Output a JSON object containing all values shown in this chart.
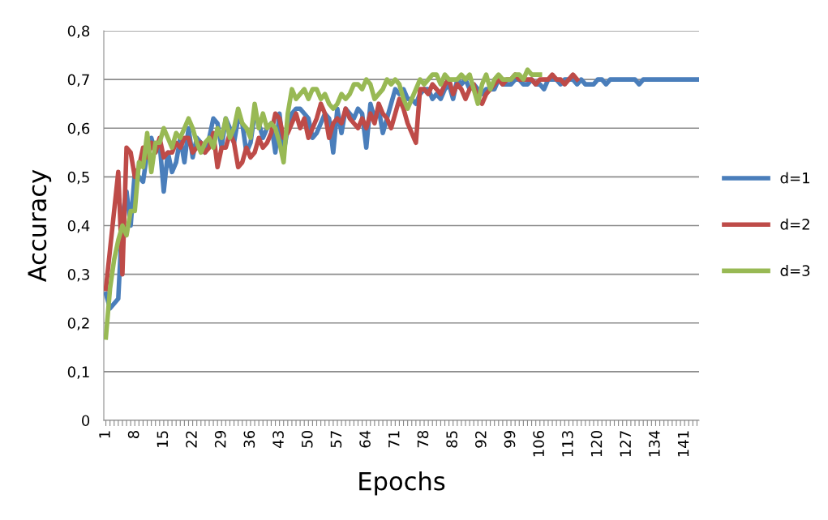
{
  "chart_data": {
    "type": "line",
    "xlabel": "Epochs",
    "ylabel": "Accuracy",
    "categories": [
      "1",
      null,
      null,
      null,
      null,
      null,
      null,
      "8",
      null,
      null,
      null,
      null,
      null,
      null,
      "15",
      null,
      null,
      null,
      null,
      null,
      null,
      "22",
      null,
      null,
      null,
      null,
      null,
      null,
      "29",
      null,
      null,
      null,
      null,
      null,
      null,
      "36",
      null,
      null,
      null,
      null,
      null,
      null,
      "43",
      null,
      null,
      null,
      null,
      null,
      null,
      "50",
      null,
      null,
      null,
      null,
      null,
      null,
      "57",
      null,
      null,
      null,
      null,
      null,
      null,
      "64",
      null,
      null,
      null,
      null,
      null,
      null,
      "71",
      null,
      null,
      null,
      null,
      null,
      null,
      "78",
      null,
      null,
      null,
      null,
      null,
      null,
      "85",
      null,
      null,
      null,
      null,
      null,
      null,
      "92",
      null,
      null,
      null,
      null,
      null,
      null,
      "99",
      null,
      null,
      null,
      null,
      null,
      null,
      "106",
      null,
      null,
      null,
      null,
      null,
      null,
      "113",
      null,
      null,
      null,
      null,
      null,
      null,
      "120",
      null,
      null,
      null,
      null,
      null,
      null,
      "127",
      null,
      null,
      null,
      null,
      null,
      null,
      "134",
      null,
      null,
      null,
      null,
      null,
      null,
      "141",
      null,
      null,
      null
    ],
    "series": [
      {
        "name": "d=1",
        "color": "#4a7ebb",
        "values": [
          0.26,
          0.23,
          0.24,
          0.25,
          0.42,
          0.47,
          0.4,
          0.51,
          0.5,
          0.49,
          0.55,
          0.58,
          0.55,
          0.57,
          0.47,
          0.55,
          0.51,
          0.53,
          0.58,
          0.53,
          0.6,
          0.54,
          0.58,
          0.57,
          0.55,
          0.58,
          0.62,
          0.61,
          0.56,
          0.62,
          0.6,
          0.57,
          0.62,
          0.61,
          0.55,
          0.57,
          0.63,
          0.61,
          0.58,
          0.6,
          0.61,
          0.55,
          0.63,
          0.55,
          0.6,
          0.63,
          0.64,
          0.64,
          0.63,
          0.62,
          0.58,
          0.59,
          0.61,
          0.63,
          0.62,
          0.55,
          0.64,
          0.59,
          0.64,
          0.63,
          0.62,
          0.64,
          0.63,
          0.56,
          0.65,
          0.62,
          0.64,
          0.59,
          0.62,
          0.65,
          0.68,
          0.67,
          0.68,
          0.66,
          0.66,
          0.65,
          0.67,
          0.68,
          0.68,
          0.66,
          0.67,
          0.66,
          0.68,
          0.69,
          0.66,
          0.7,
          0.69,
          0.7,
          0.68,
          0.69,
          0.68,
          0.67,
          0.68,
          0.68,
          0.68,
          0.7,
          0.69,
          0.69,
          0.69,
          0.7,
          0.7,
          0.69,
          0.69,
          0.7,
          0.69,
          0.69,
          0.68,
          0.7,
          0.7,
          0.7,
          0.69,
          0.7,
          0.7,
          0.7,
          0.69,
          0.7,
          0.69,
          0.69,
          0.69,
          0.7,
          0.7,
          0.69,
          0.7,
          0.7,
          0.7,
          0.7,
          0.7,
          0.7,
          0.7,
          0.69,
          0.7,
          0.7,
          0.7,
          0.7,
          0.7,
          0.7,
          0.7,
          0.7,
          0.7,
          0.7,
          0.7,
          0.7,
          0.7,
          0.7
        ]
      },
      {
        "name": "d=2",
        "color": "#be4b48",
        "values": [
          0.27,
          0.35,
          0.43,
          0.51,
          0.3,
          0.56,
          0.55,
          0.5,
          0.52,
          0.56,
          0.54,
          0.57,
          0.55,
          0.58,
          0.54,
          0.55,
          0.55,
          0.57,
          0.56,
          0.58,
          0.58,
          0.55,
          0.56,
          0.57,
          0.55,
          0.56,
          0.59,
          0.52,
          0.56,
          0.56,
          0.59,
          0.57,
          0.52,
          0.53,
          0.56,
          0.54,
          0.55,
          0.58,
          0.56,
          0.57,
          0.59,
          0.63,
          0.62,
          0.58,
          0.59,
          0.61,
          0.63,
          0.6,
          0.62,
          0.58,
          0.6,
          0.62,
          0.65,
          0.63,
          0.58,
          0.61,
          0.62,
          0.61,
          0.64,
          0.62,
          0.61,
          0.6,
          0.62,
          0.6,
          0.63,
          0.61,
          0.65,
          0.63,
          0.62,
          0.6,
          0.63,
          0.66,
          0.64,
          0.61,
          0.59,
          0.57,
          0.68,
          0.68,
          0.67,
          0.69,
          0.68,
          0.67,
          0.69,
          0.7,
          0.67,
          0.69,
          0.68,
          0.66,
          0.68,
          0.69,
          0.66,
          0.65,
          0.67,
          0.68,
          0.69,
          0.7,
          0.69,
          0.7,
          0.7,
          0.71,
          0.7,
          0.7,
          0.7,
          0.7,
          0.69,
          0.7,
          0.7,
          0.7,
          0.71,
          0.7,
          0.7,
          0.69,
          0.7,
          0.71,
          0.7,
          null,
          null,
          null,
          null,
          null,
          null,
          null,
          null,
          null,
          null,
          null,
          null,
          null,
          null,
          null,
          null,
          null,
          null,
          null,
          null,
          null,
          null,
          null,
          null,
          null,
          null,
          null,
          null,
          null
        ]
      },
      {
        "name": "d=3",
        "color": "#98b954",
        "values": [
          0.17,
          0.27,
          0.33,
          0.37,
          0.4,
          0.38,
          0.43,
          0.43,
          0.53,
          0.52,
          0.59,
          0.51,
          0.57,
          0.57,
          0.6,
          0.58,
          0.56,
          0.59,
          0.58,
          0.6,
          0.62,
          0.6,
          0.57,
          0.55,
          0.57,
          0.58,
          0.56,
          0.6,
          0.58,
          0.62,
          0.58,
          0.6,
          0.64,
          0.61,
          0.6,
          0.58,
          0.65,
          0.6,
          0.63,
          0.6,
          0.61,
          0.6,
          0.57,
          0.53,
          0.63,
          0.68,
          0.66,
          0.67,
          0.68,
          0.66,
          0.68,
          0.68,
          0.66,
          0.67,
          0.65,
          0.64,
          0.65,
          0.67,
          0.66,
          0.67,
          0.69,
          0.69,
          0.68,
          0.7,
          0.69,
          0.66,
          0.67,
          0.68,
          0.7,
          0.69,
          0.7,
          0.69,
          0.66,
          0.64,
          0.66,
          0.68,
          0.7,
          0.69,
          0.7,
          0.71,
          0.71,
          0.69,
          0.71,
          0.7,
          0.7,
          0.7,
          0.71,
          0.7,
          0.71,
          0.68,
          0.65,
          0.69,
          0.71,
          0.68,
          0.7,
          0.71,
          0.7,
          0.7,
          0.7,
          0.71,
          0.71,
          0.7,
          0.72,
          0.71,
          0.71,
          0.71,
          null,
          null,
          null,
          null,
          null,
          null,
          null,
          null,
          null,
          null,
          null,
          null,
          null,
          null,
          null,
          null,
          null,
          null,
          null,
          null,
          null,
          null,
          null,
          null,
          null,
          null,
          null,
          null,
          null,
          null,
          null,
          null,
          null,
          null,
          null,
          null,
          null,
          null
        ]
      }
    ],
    "ylim": [
      0,
      0.8
    ],
    "yticks": [
      0,
      {
        "value": 0.1,
        "label": "0,1"
      },
      {
        "value": 0.2,
        "label": "0,2"
      },
      {
        "value": 0.3,
        "label": "0,3"
      },
      {
        "value": 0.4,
        "label": "0,4"
      },
      {
        "value": 0.5,
        "label": "0,5"
      },
      {
        "value": 0.6,
        "label": "0,6"
      },
      {
        "value": 0.7,
        "label": "0,7"
      },
      {
        "value": 0.8,
        "label": "0,8"
      }
    ],
    "grid": "y",
    "legend": "right",
    "marker": "none",
    "line_style": "solid"
  }
}
